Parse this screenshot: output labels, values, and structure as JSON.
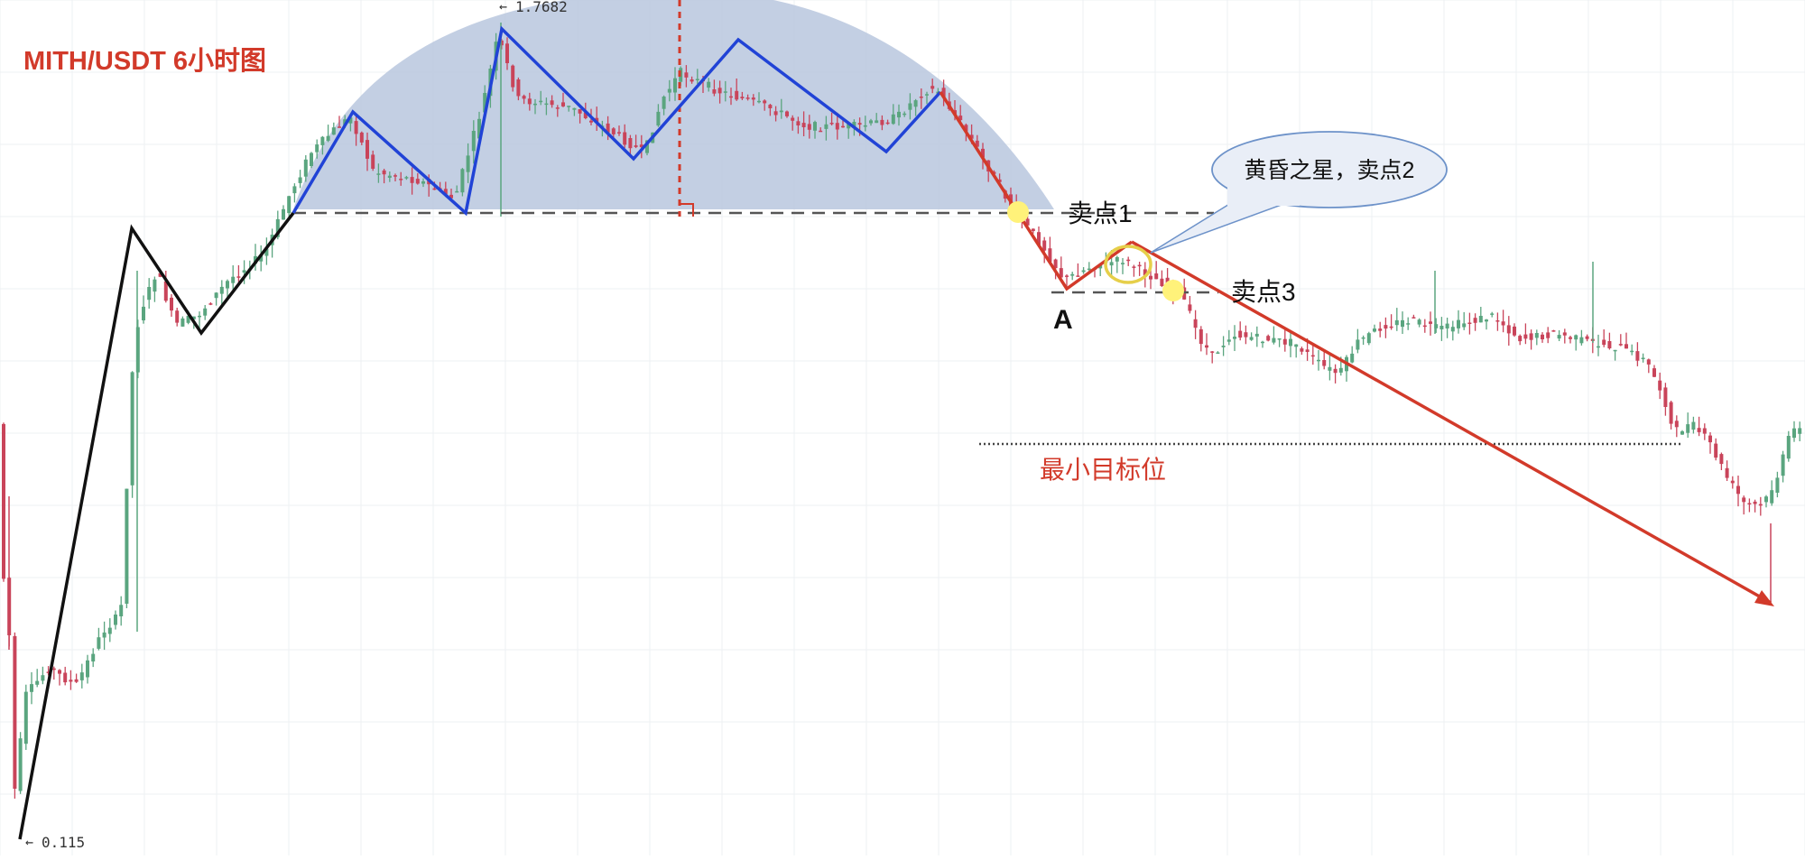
{
  "chart_data": {
    "type": "candlestick",
    "title": "MITH/USDT 6小时图",
    "price_labels": {
      "high": "1.7682",
      "low": "0.115"
    },
    "annotations": {
      "sell_point_1": "卖点1",
      "sell_point_3": "卖点3",
      "point_a": "A",
      "callout": "黄昏之星，卖点2",
      "min_target": "最小目标位"
    },
    "grid": true,
    "colors": {
      "up": "#5aa57f",
      "down": "#c9445a",
      "black_trend": "#111111",
      "blue_zigzag": "#2143d6",
      "red_trend": "#d23a2a",
      "dome": "#b9c7de",
      "title": "#d23a2a",
      "marker": "#fff27a",
      "callout_fill": "#e9eef7",
      "callout_stroke": "#6d92c9"
    }
  }
}
